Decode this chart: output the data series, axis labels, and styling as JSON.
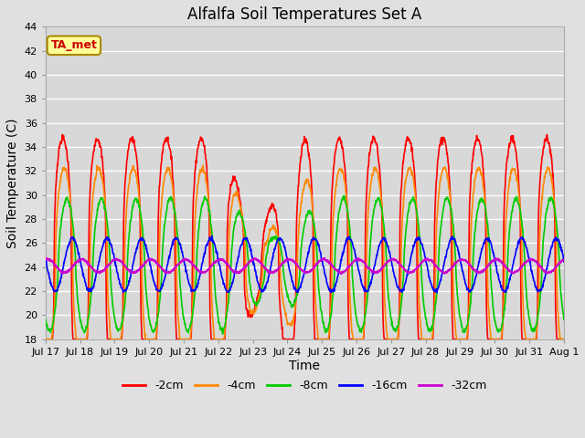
{
  "title": "Alfalfa Soil Temperatures Set A",
  "xlabel": "Time",
  "ylabel": "Soil Temperature (C)",
  "ylim": [
    18,
    44
  ],
  "yticks": [
    18,
    20,
    22,
    24,
    26,
    28,
    30,
    32,
    34,
    36,
    38,
    40,
    42,
    44
  ],
  "background_color": "#e0e0e0",
  "plot_bg_color": "#d8d8d8",
  "grid_color": "#ffffff",
  "lines": [
    {
      "label": "-2cm",
      "color": "#ff0000",
      "lw": 1.2
    },
    {
      "label": "-4cm",
      "color": "#ff8800",
      "lw": 1.2
    },
    {
      "label": "-8cm",
      "color": "#00cc00",
      "lw": 1.2
    },
    {
      "label": "-16cm",
      "color": "#0000ff",
      "lw": 1.2
    },
    {
      "label": "-32cm",
      "color": "#cc00cc",
      "lw": 1.5
    }
  ],
  "annotation_text": "TA_met",
  "annotation_color": "#cc0000",
  "annotation_bg": "#ffff99",
  "annotation_edge": "#aa8800",
  "tick_labels": [
    "Jul 17",
    "Jul 18",
    "Jul 19",
    "Jul 20",
    "Jul 21",
    "Jul 22",
    "Jul 23",
    "Jul 24",
    "Jul 25",
    "Jul 26",
    "Jul 27",
    "Jul 28",
    "Jul 29",
    "Jul 30",
    "Jul 31",
    "Aug 1"
  ]
}
